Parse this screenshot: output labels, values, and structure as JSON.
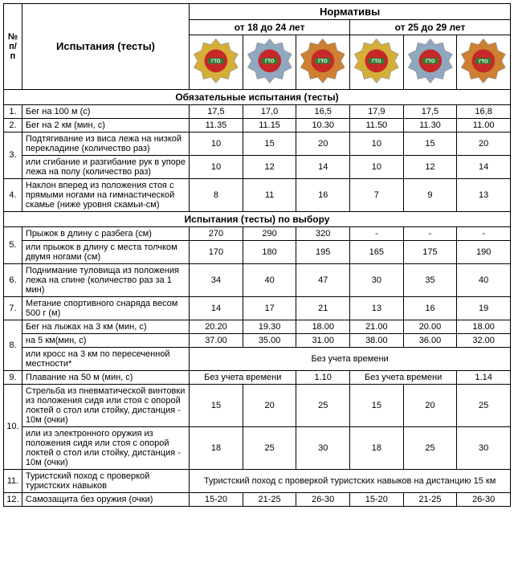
{
  "header": {
    "normatives": "Нормативы",
    "num": "№ п/п",
    "tests": "Испытания (тесты)",
    "age1": "от 18 до 24 лет",
    "age2": "от 25 до 29 лет"
  },
  "badges": {
    "colors": [
      "#d4af37",
      "#8fa8c0",
      "#cd7f32",
      "#d4af37",
      "#8fa8c0",
      "#cd7f32"
    ],
    "inner": [
      "#c62828",
      "#c62828",
      "#c62828",
      "#c62828",
      "#c62828",
      "#c62828"
    ],
    "ribbon": "#2e7d32",
    "label": "ГТО"
  },
  "section1": "Обязательные испытания (тесты)",
  "section2": "Испытания (тесты) по выбору",
  "rows": [
    {
      "n": "1.",
      "name": "Бег на 100 м (с)",
      "v": [
        "17,5",
        "17,0",
        "16,5",
        "17,9",
        "17,5",
        "16,8"
      ]
    },
    {
      "n": "2.",
      "name": "Бег на 2 км (мин, с)",
      "v": [
        "11.35",
        "11.15",
        "10.30",
        "11.50",
        "11.30",
        "11.00"
      ]
    },
    {
      "n": "3.",
      "sub": [
        {
          "name": "Подтягивание из виса лежа на низкой перекладине (количество раз)",
          "v": [
            "10",
            "15",
            "20",
            "10",
            "15",
            "20"
          ]
        },
        {
          "name": "или сгибание и разгибание рук в упоре лежа на полу (количество раз)",
          "v": [
            "10",
            "12",
            "14",
            "10",
            "12",
            "14"
          ]
        }
      ]
    },
    {
      "n": "4.",
      "name": "Наклон вперед из положения стоя с прямыми ногами на гимнастической скамье (ниже уровня скамьи-см)",
      "v": [
        "8",
        "11",
        "16",
        "7",
        "9",
        "13"
      ]
    }
  ],
  "rows2": [
    {
      "n": "5.",
      "sub": [
        {
          "name": "Прыжок в длину с разбега (см)",
          "v": [
            "270",
            "290",
            "320",
            "-",
            "-",
            "-"
          ]
        },
        {
          "name": "или прыжок в длину с места толчком двумя ногами (см)",
          "v": [
            "170",
            "180",
            "195",
            "165",
            "175",
            "190"
          ]
        }
      ]
    },
    {
      "n": "6.",
      "name": "Поднимание туловища из положения лежа на спине (количество раз за 1 мин)",
      "v": [
        "34",
        "40",
        "47",
        "30",
        "35",
        "40"
      ]
    },
    {
      "n": "7.",
      "name": "Метание спортивного снаряда весом 500 г (м)",
      "v": [
        "14",
        "17",
        "21",
        "13",
        "16",
        "19"
      ]
    },
    {
      "n": "8.",
      "sub": [
        {
          "name": "Бег на лыжах на 3 км (мин, с)",
          "v": [
            "20.20",
            "19.30",
            "18.00",
            "21.00",
            "20.00",
            "18.00"
          ]
        },
        {
          "name": "на 5 км(мин, с)",
          "v": [
            "37.00",
            "35.00",
            "31.00",
            "38.00",
            "36.00",
            "32.00"
          ]
        },
        {
          "name": "или кросс на 3 км по пересеченной местности*",
          "span": "Без учета времени"
        }
      ]
    },
    {
      "n": "9.",
      "name": "Плавание на 50 м (мин, с)",
      "v2": [
        {
          "span": 2,
          "t": "Без учета времени"
        },
        {
          "span": 1,
          "t": "1.10"
        },
        {
          "span": 2,
          "t": "Без учета времени"
        },
        {
          "span": 1,
          "t": "1.14"
        }
      ]
    },
    {
      "n": "10.",
      "sub": [
        {
          "name": "Стрельба из пневматической винтовки из положения сидя или стоя с опорой локтей о стол или стойку, дистанция - 10м (очки)",
          "v": [
            "15",
            "20",
            "25",
            "15",
            "20",
            "25"
          ]
        },
        {
          "name": "или из электронного оружия из положения сидя или стоя с опорой локтей о стол или стойку, дистанция - 10м (очки)",
          "v": [
            "18",
            "25",
            "30",
            "18",
            "25",
            "30"
          ]
        }
      ]
    },
    {
      "n": "11.",
      "name": "Туристский поход с проверкой туристских навыков",
      "span": "Туристский поход с проверкой туристских навыков на дистанцию 15 км"
    },
    {
      "n": "12.",
      "name": "Самозащита без оружия (очки)",
      "v": [
        "15-20",
        "21-25",
        "26-30",
        "15-20",
        "21-25",
        "26-30"
      ]
    }
  ]
}
